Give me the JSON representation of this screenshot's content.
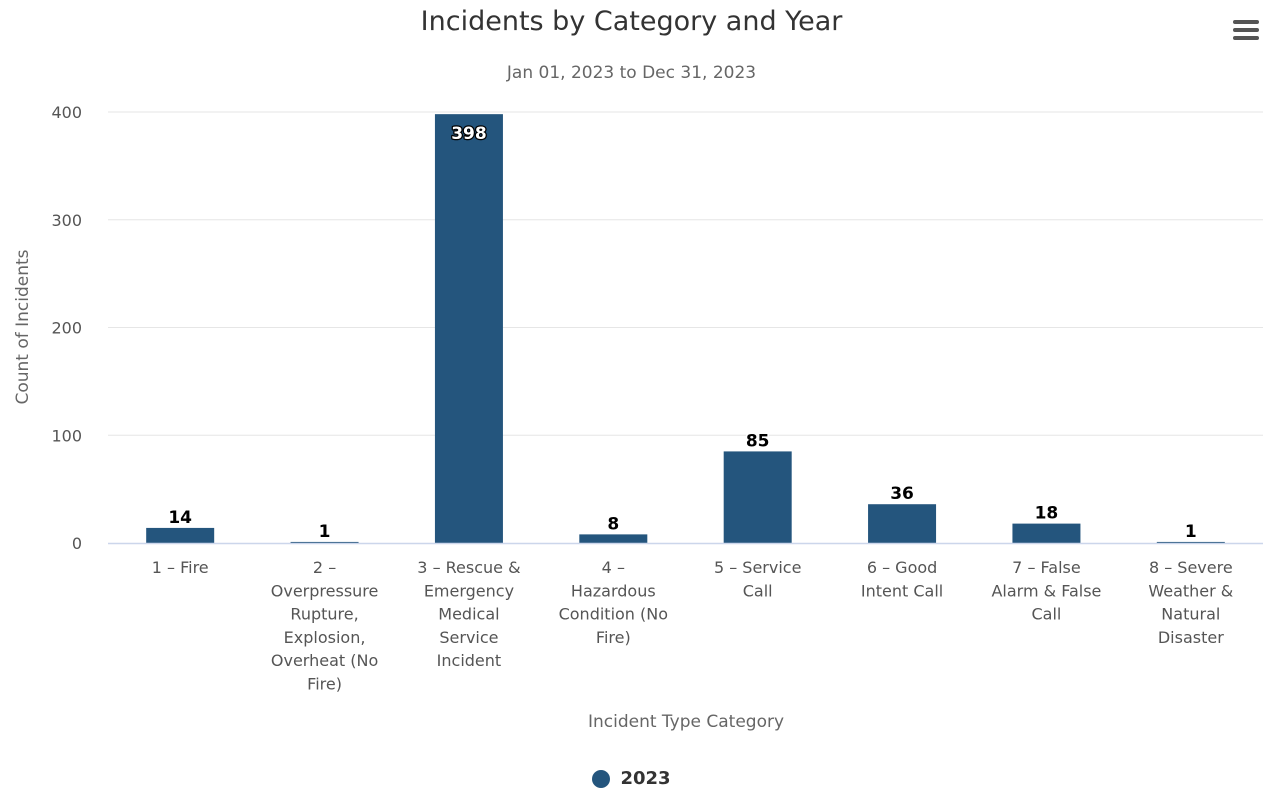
{
  "chart_data": {
    "type": "bar",
    "title": "Incidents by Category and Year",
    "subtitle": "Jan 01, 2023 to Dec 31, 2023",
    "xlabel": "Incident Type Category",
    "ylabel": "Count of Incidents",
    "categories": [
      "1 - Fire",
      "2 - Overpressure Rupture, Explosion, Overheat (No Fire)",
      "3 - Rescue & Emergency Medical Service Incident",
      "4 - Hazardous Condition (No Fire)",
      "5 - Service Call",
      "6 - Good Intent Call",
      "7 - False Alarm & False Call",
      "8 - Severe Weather & Natural Disaster"
    ],
    "category_label_lines": [
      [
        "1 – Fire"
      ],
      [
        "2 –",
        "Overpressure",
        "Rupture,",
        "Explosion,",
        "Overheat (No",
        "Fire)"
      ],
      [
        "3 – Rescue &",
        "Emergency",
        "Medical",
        "Service",
        "Incident"
      ],
      [
        "4 –",
        "Hazardous",
        "Condition (No",
        "Fire)"
      ],
      [
        "5 – Service",
        "Call"
      ],
      [
        "6 – Good",
        "Intent Call"
      ],
      [
        "7 – False",
        "Alarm & False",
        "Call"
      ],
      [
        "8 – Severe",
        "Weather &",
        "Natural",
        "Disaster"
      ]
    ],
    "series": [
      {
        "name": "2023",
        "color": "#24557d",
        "values": [
          14,
          1,
          398,
          8,
          85,
          36,
          18,
          1
        ]
      }
    ],
    "ylim": [
      0,
      400
    ],
    "yticks": [
      0,
      100,
      200,
      300,
      400
    ],
    "grid": true,
    "legend_position": "bottom-center"
  },
  "colors": {
    "bar": "#24557d",
    "grid": "#e6e6e6",
    "axis": "#ccd6eb"
  },
  "menu_icon": "hamburger-menu-icon"
}
